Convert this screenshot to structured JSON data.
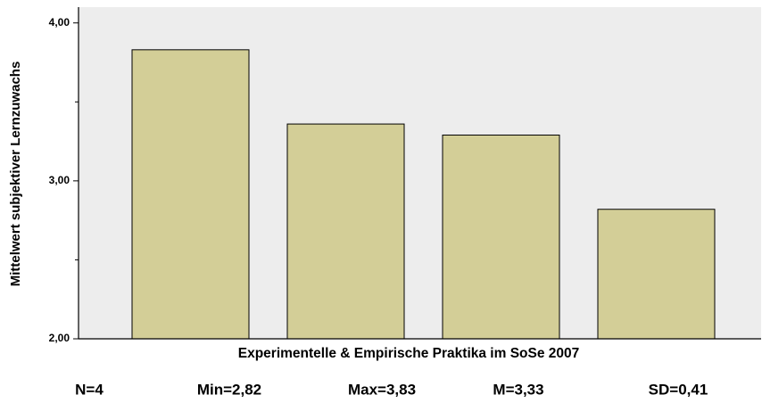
{
  "chart_data": {
    "type": "bar",
    "x_label": "Experimentelle & Empirische Praktika im SoSe 2007",
    "y_label": "Mittelwert subjektiver Lernzuwachs",
    "categories": [
      null,
      null,
      null,
      null
    ],
    "values": [
      3.83,
      3.36,
      3.29,
      2.82
    ],
    "color": "#d3ce97",
    "ylim": [
      2,
      4.1
    ],
    "yticks": [
      {
        "value": 2,
        "label": "2,00"
      },
      {
        "value": 3,
        "label": "3,00"
      },
      {
        "value": 4,
        "label": "4,00"
      }
    ],
    "minor_yticks": [
      2.5,
      3.5
    ],
    "grid": false,
    "footer": [
      "N=4",
      "Min=2,82",
      "Max=3,83",
      "M=3,33",
      "SD=0,41"
    ]
  }
}
